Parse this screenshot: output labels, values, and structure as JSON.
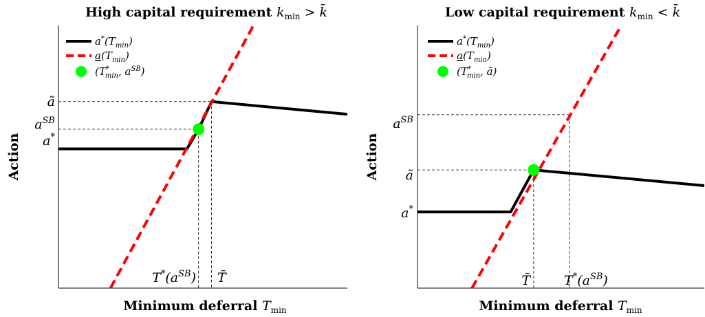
{
  "chart_data": [
    {
      "type": "line",
      "title": "High capital requirement k_min > k̄",
      "xlabel": "Minimum deferral T_min",
      "ylabel": "Action",
      "grid": false,
      "legend_placement": "top-left",
      "xlim": [
        0,
        10
      ],
      "ylim": [
        0,
        10
      ],
      "series": [
        {
          "name": "a*(T_min)",
          "style": "solid",
          "color": "#000000",
          "points": [
            [
              0,
              5.3
            ],
            [
              4.45,
              5.3
            ],
            [
              4.85,
              6.05
            ],
            [
              5.3,
              7.1
            ],
            [
              10,
              6.62
            ]
          ]
        },
        {
          "name": "a(T_min)",
          "style": "dashed",
          "color": "#ff0000",
          "points": [
            [
              1.8,
              0
            ],
            [
              6.75,
              10
            ]
          ]
        },
        {
          "name": "(T*_min, a^SB)",
          "style": "marker",
          "color": "#00ff00",
          "points": [
            [
              4.85,
              6.05
            ]
          ]
        }
      ],
      "ytick_labels": [
        {
          "text": "ã",
          "value": 7.1
        },
        {
          "text": "a^SB",
          "value": 6.05
        },
        {
          "text": "a*",
          "value": 5.3
        }
      ],
      "xtick_labels": [
        {
          "text": "T*(a^SB)",
          "value": 4.85
        },
        {
          "text": "T̃",
          "value": 5.3
        }
      ]
    },
    {
      "type": "line",
      "title": "Low capital requirement k_min < k̄",
      "xlabel": "Minimum deferral T_min",
      "ylabel": "Action",
      "grid": false,
      "legend_placement": "top-left",
      "xlim": [
        0,
        10
      ],
      "ylim": [
        0,
        10
      ],
      "series": [
        {
          "name": "a*(T_min)",
          "style": "solid",
          "color": "#000000",
          "points": [
            [
              0,
              2.9
            ],
            [
              3.25,
              2.9
            ],
            [
              4.05,
              4.5
            ],
            [
              10,
              3.9
            ]
          ]
        },
        {
          "name": "a(T_min)",
          "style": "dashed",
          "color": "#ff0000",
          "points": [
            [
              1.9,
              0
            ],
            [
              7.1,
              10
            ]
          ]
        },
        {
          "name": "(T*_min, ã)",
          "style": "marker",
          "color": "#00ff00",
          "points": [
            [
              4.05,
              4.5
            ]
          ]
        }
      ],
      "ytick_labels": [
        {
          "text": "a^SB",
          "value": 6.6
        },
        {
          "text": "ã",
          "value": 4.5
        },
        {
          "text": "a*",
          "value": 2.9
        }
      ],
      "xtick_labels": [
        {
          "text": "T̃",
          "value": 4.05
        },
        {
          "text": "T*(a^SB)",
          "value": 5.3
        }
      ]
    }
  ],
  "panels": [
    {
      "title_main": "High capital requirement ",
      "title_math": "k",
      "title_sub": "min",
      "title_rel": " > ",
      "title_rhs": "k̄",
      "xlabel_main": "Minimum deferral ",
      "xlabel_math": "T",
      "xlabel_sub": "min",
      "ylabel": "Action",
      "legend": [
        {
          "main": "a",
          "sup": "*",
          "rest": "(T",
          "sub": "min",
          "close": ")"
        },
        {
          "main": "a",
          "sup": "",
          "rest": "(T",
          "sub": "min",
          "close": ")"
        },
        {
          "main": "(T",
          "sup": "*",
          "rest": "",
          "sub": "min",
          "close": ", a",
          "sup2": "SB",
          "close2": ")"
        }
      ],
      "yticks": [
        {
          "base": "ã",
          "sup": ""
        },
        {
          "base": "a",
          "sup": "SB"
        },
        {
          "base": "a",
          "sup": "*"
        }
      ],
      "xticks": [
        {
          "base": "T",
          "sup": "*",
          "rest": "(a",
          "sup2": "SB",
          "close": ")"
        },
        {
          "base": "T̃",
          "sup": "",
          "rest": "",
          "sup2": "",
          "close": ""
        }
      ]
    },
    {
      "title_main": "Low capital requirement ",
      "title_math": "k",
      "title_sub": "min",
      "title_rel": " < ",
      "title_rhs": "k̄",
      "xlabel_main": "Minimum deferral ",
      "xlabel_math": "T",
      "xlabel_sub": "min",
      "ylabel": "Action",
      "legend": [
        {
          "main": "a",
          "sup": "*",
          "rest": "(T",
          "sub": "min",
          "close": ")"
        },
        {
          "main": "a",
          "sup": "",
          "rest": "(T",
          "sub": "min",
          "close": ")"
        },
        {
          "main": "(T",
          "sup": "*",
          "rest": "",
          "sub": "min",
          "close": ", ã",
          "sup2": "",
          "close2": ")"
        }
      ],
      "yticks": [
        {
          "base": "a",
          "sup": "SB"
        },
        {
          "base": "ã",
          "sup": ""
        },
        {
          "base": "a",
          "sup": "*"
        }
      ],
      "xticks": [
        {
          "base": "T̃",
          "sup": "",
          "rest": "",
          "sup2": "",
          "close": ""
        },
        {
          "base": "T",
          "sup": "*",
          "rest": "(a",
          "sup2": "SB",
          "close": ")"
        }
      ]
    }
  ]
}
